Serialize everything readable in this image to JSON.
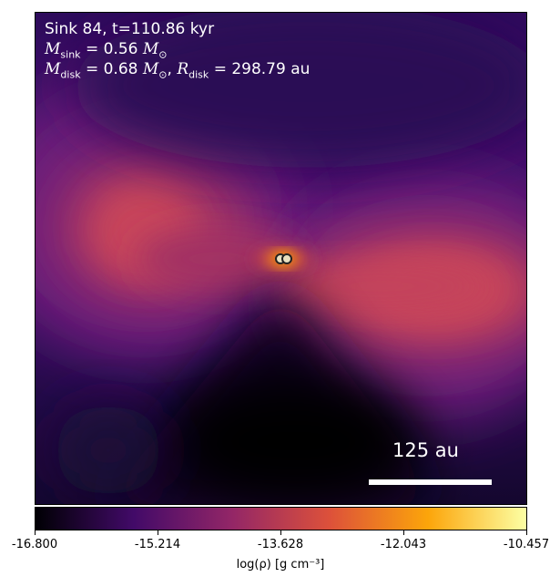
{
  "info": {
    "line1": "Sink 84, t=110.86 kyr",
    "msink_value": "= 0.56",
    "mdisk_value": "= 0.68",
    "rdisk_value": "= 298.79 au"
  },
  "scalebar": {
    "label": "125 au"
  },
  "colorbar": {
    "ticks": [
      "-16.800",
      "-15.214",
      "-13.628",
      "-12.043",
      "-10.457"
    ],
    "label": "log(ρ) [g cm⁻³]"
  },
  "colors": {
    "cmap": [
      "#000004",
      "#420a68",
      "#932667",
      "#dd513a",
      "#fca50a",
      "#fcffa4"
    ]
  }
}
